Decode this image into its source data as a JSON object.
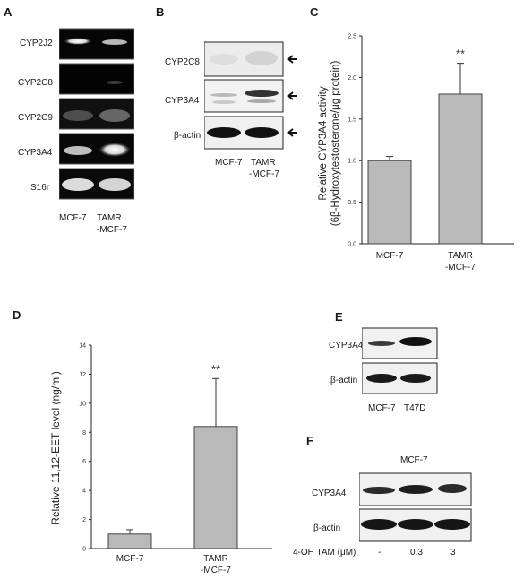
{
  "panel_a": {
    "letter": "A",
    "rows": [
      "CYP2J2",
      "CYP2C8",
      "CYP2C9",
      "CYP3A4",
      "S16r"
    ],
    "lanes": [
      "MCF-7",
      "TAMR",
      "-MCF-7"
    ]
  },
  "panel_b": {
    "letter": "B",
    "rows": [
      "CYP2C8",
      "CYP3A4",
      "β-actin"
    ],
    "lanes": [
      "MCF-7",
      "TAMR",
      "-MCF-7"
    ]
  },
  "panel_e": {
    "letter": "E",
    "rows": [
      "CYP3A4",
      "β-actin"
    ],
    "lanes": [
      "MCF-7",
      "T47D"
    ]
  },
  "panel_f": {
    "letter": "F",
    "title": "MCF-7",
    "rows": [
      "CYP3A4",
      "β-actin"
    ],
    "treatment_label": "4-OH TAM (μM)",
    "doses": [
      "-",
      "0.3",
      "3"
    ]
  },
  "chart_data": [
    {
      "panel": "C",
      "type": "bar",
      "categories": [
        "MCF-7",
        "TAMR\n-MCF-7"
      ],
      "values": [
        1.0,
        1.8
      ],
      "errors": [
        0.05,
        0.37
      ],
      "ylabel_line1": "Relative CYP3A4 activity",
      "ylabel_line2": "(6β-Hydroxytestosterone/μg protein)",
      "ylim": [
        0,
        2.5
      ],
      "yticks": [
        "0.0",
        "0.5",
        "1.0",
        "1.5",
        "2.0",
        "2.5"
      ],
      "significance": "**"
    },
    {
      "panel": "D",
      "type": "bar",
      "categories": [
        "MCF-7",
        "TAMR\n-MCF-7"
      ],
      "values": [
        1.0,
        8.4
      ],
      "errors": [
        0.3,
        3.3
      ],
      "ylabel": "Relative 11,12-EET level (ng/ml)",
      "ylim": [
        0,
        14
      ],
      "yticks": [
        "0",
        "2",
        "4",
        "6",
        "8",
        "10",
        "12",
        "14"
      ],
      "significance": "**"
    }
  ]
}
